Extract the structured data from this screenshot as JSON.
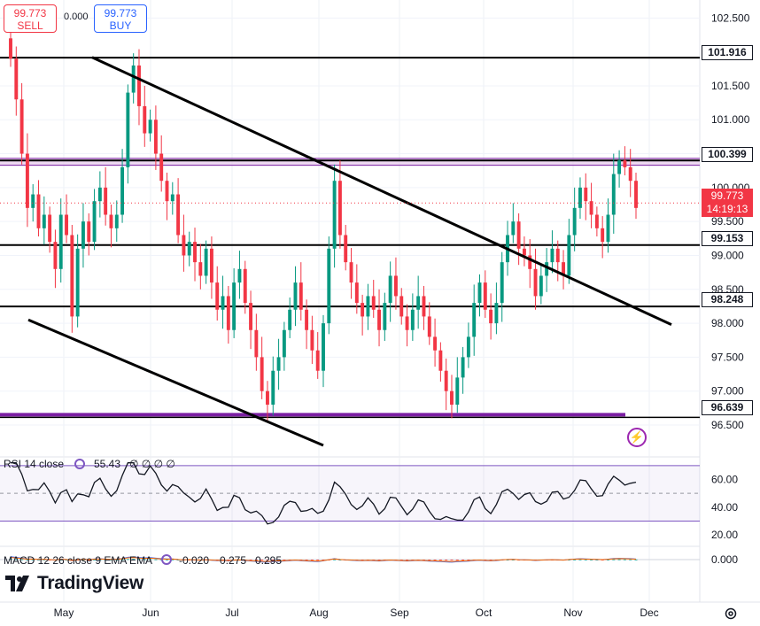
{
  "trade": {
    "sell_price": "99.773",
    "sell_label": "SELL",
    "spread": "0.000",
    "buy_price": "99.773",
    "buy_label": "BUY"
  },
  "price_axis": {
    "ticks": [
      "102.500",
      "101.500",
      "101.000",
      "100.500",
      "100.000",
      "99.500",
      "99.000",
      "98.500",
      "98.000",
      "97.500",
      "97.000",
      "96.500"
    ],
    "tick_values": [
      102.5,
      101.5,
      101.0,
      100.5,
      100.0,
      99.5,
      99.0,
      98.5,
      98.0,
      97.5,
      97.0,
      96.5
    ]
  },
  "levels": [
    {
      "label": "101.916",
      "value": 101.916
    },
    {
      "label": "100.399",
      "value": 100.399
    },
    {
      "label": "99.153",
      "value": 99.153
    },
    {
      "label": "98.248",
      "value": 98.248
    },
    {
      "label": "96.639",
      "value": 96.639
    }
  ],
  "current": {
    "price": "99.773",
    "countdown": "14:19:13",
    "value": 99.773
  },
  "time_axis": [
    "May",
    "Jun",
    "Jul",
    "Aug",
    "Sep",
    "Oct",
    "Nov",
    "Dec"
  ],
  "rsi": {
    "label": "RSI 14 close",
    "value": "55.43",
    "zeros": "∅ ∅ ∅ ∅",
    "ticks": [
      "60.00",
      "40.00",
      "20.00"
    ]
  },
  "macd": {
    "label": "MACD 12 26 close 9 EMA EMA",
    "hist": "-0.020",
    "macd": "0.275",
    "signal": "0.295",
    "tick": "0.000"
  },
  "brand": "TradingView",
  "colors": {
    "bull": "#089981",
    "bear": "#f23645",
    "level_line": "#000000",
    "purple": "#7b1fa2",
    "rsi_band": "#7e57c2"
  },
  "chart_data": {
    "type": "candlestick",
    "symbol_price": 99.773,
    "ylim": [
      96.2,
      102.7
    ],
    "x_labels": [
      "May",
      "Jun",
      "Jul",
      "Aug",
      "Sep",
      "Oct",
      "Nov",
      "Dec"
    ],
    "ohlc_path": [
      101.9,
      101.3,
      100.5,
      99.7,
      99.9,
      99.4,
      99.6,
      99.2,
      98.8,
      99.6,
      99.3,
      98.1,
      99.1,
      99.5,
      99.2,
      99.8,
      100.0,
      99.6,
      99.4,
      99.6,
      100.3,
      101.4,
      101.8,
      101.2,
      100.8,
      101.0,
      100.5,
      100.1,
      99.8,
      99.9,
      99.3,
      99.0,
      99.2,
      98.9,
      98.7,
      99.1,
      98.6,
      98.2,
      98.4,
      97.9,
      98.6,
      98.8,
      98.3,
      97.9,
      97.5,
      97.0,
      96.8,
      97.3,
      97.5,
      97.9,
      98.2,
      98.6,
      98.2,
      97.9,
      97.6,
      97.3,
      98.0,
      99.1,
      100.1,
      99.3,
      98.9,
      98.6,
      98.3,
      98.1,
      98.4,
      98.2,
      97.9,
      98.3,
      98.7,
      98.4,
      98.1,
      97.9,
      98.2,
      98.4,
      98.1,
      97.8,
      97.6,
      97.3,
      97.0,
      96.8,
      97.2,
      97.5,
      97.8,
      98.3,
      98.6,
      98.2,
      98.0,
      98.3,
      98.9,
      99.3,
      99.5,
      99.1,
      99.0,
      98.8,
      98.4,
      98.7,
      98.9,
      99.1,
      98.9,
      98.7,
      99.3,
      99.7,
      100.0,
      99.8,
      99.6,
      99.4,
      99.2,
      99.6,
      100.2,
      100.4,
      100.3,
      100.1,
      99.7
    ]
  }
}
